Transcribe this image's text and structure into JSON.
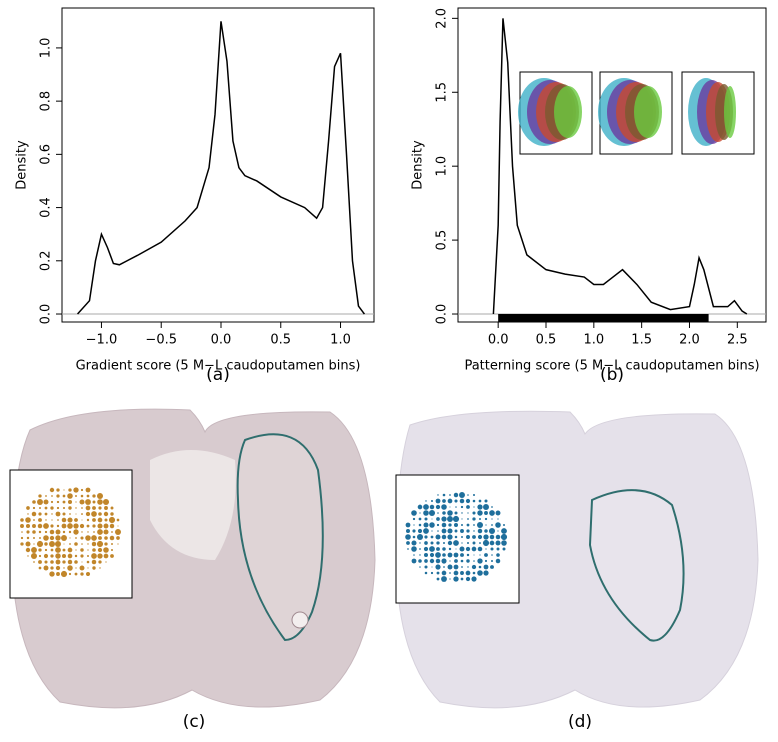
{
  "chart_data": [
    {
      "type": "line",
      "label": "(a)",
      "x_label": "Gradient score (5 M−L caudoputamen bins)",
      "y_label": "Density",
      "x": [
        -1.2,
        -1.1,
        -1.05,
        -1.0,
        -0.95,
        -0.9,
        -0.85,
        -0.7,
        -0.5,
        -0.3,
        -0.2,
        -0.1,
        -0.05,
        0,
        0.05,
        0.1,
        0.15,
        0.2,
        0.3,
        0.5,
        0.7,
        0.8,
        0.85,
        0.9,
        0.95,
        1.0,
        1.05,
        1.1,
        1.15,
        1.2
      ],
      "values": [
        0.0,
        0.05,
        0.2,
        0.3,
        0.25,
        0.19,
        0.185,
        0.22,
        0.27,
        0.35,
        0.4,
        0.55,
        0.75,
        1.1,
        0.95,
        0.65,
        0.55,
        0.52,
        0.5,
        0.44,
        0.4,
        0.36,
        0.4,
        0.65,
        0.93,
        0.98,
        0.6,
        0.2,
        0.03,
        0.0
      ],
      "color": "#000000",
      "xlim": [
        -1.33,
        1.28
      ],
      "ylim": [
        -0.03,
        1.15
      ],
      "xticks": [
        {
          "value": -1,
          "label": "−1.0"
        },
        {
          "value": -0.5,
          "label": "−0.5"
        },
        {
          "value": 0,
          "label": "0.0"
        },
        {
          "value": 0.5,
          "label": "0.5"
        },
        {
          "value": 1,
          "label": "1.0"
        }
      ],
      "yticks": [
        {
          "value": 0,
          "label": "0.0"
        },
        0.2,
        0.4,
        0.6,
        0.8,
        {
          "value": 1,
          "label": "1.0"
        }
      ]
    },
    {
      "type": "line",
      "label": "(b)",
      "x_label": "Patterning score (5 M−L caudoputamen bins)",
      "y_label": "Density",
      "x": [
        -0.05,
        0,
        0.02,
        0.05,
        0.1,
        0.15,
        0.2,
        0.3,
        0.5,
        0.7,
        0.9,
        1.0,
        1.1,
        1.2,
        1.3,
        1.45,
        1.6,
        1.8,
        2.0,
        2.05,
        2.1,
        2.15,
        2.25,
        2.4,
        2.47,
        2.55,
        2.6
      ],
      "values": [
        0.0,
        0.6,
        1.3,
        2.0,
        1.7,
        1.0,
        0.6,
        0.4,
        0.3,
        0.27,
        0.25,
        0.2,
        0.2,
        0.25,
        0.3,
        0.2,
        0.08,
        0.03,
        0.05,
        0.2,
        0.38,
        0.3,
        0.05,
        0.05,
        0.09,
        0.02,
        0.0
      ],
      "color": "#000000",
      "xlim": [
        -0.42,
        2.8
      ],
      "ylim": [
        -0.054,
        2.07
      ],
      "xticks": [
        {
          "value": 0,
          "label": "0.0"
        },
        0.5,
        {
          "value": 1,
          "label": "1.0"
        },
        1.5,
        {
          "value": 2,
          "label": "2.0"
        },
        2.5
      ],
      "yticks": [
        {
          "value": 0,
          "label": "0.0"
        },
        0.5,
        {
          "value": 1,
          "label": "1.0"
        },
        1.5,
        {
          "value": 2,
          "label": "2.0"
        }
      ]
    }
  ],
  "figures": [
    {
      "label": "(c)"
    },
    {
      "label": "(d)"
    }
  ]
}
